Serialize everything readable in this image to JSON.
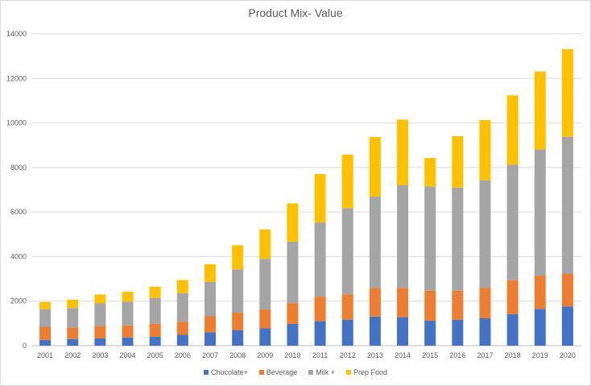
{
  "chart_data": {
    "type": "bar",
    "stacked": true,
    "title": "Product Mix- Value",
    "xlabel": "",
    "ylabel": "",
    "ylim": [
      0,
      14000
    ],
    "yticks": [
      0,
      2000,
      4000,
      6000,
      8000,
      10000,
      12000,
      14000
    ],
    "grid": true,
    "legend_position": "bottom",
    "categories": [
      "2001",
      "2002",
      "2003",
      "2004",
      "2005",
      "2006",
      "2007",
      "2008",
      "2009",
      "2010",
      "2011",
      "2012",
      "2013",
      "2014",
      "2015",
      "2016",
      "2017",
      "2018",
      "2019",
      "2020"
    ],
    "series": [
      {
        "name": "Chocolate+",
        "color": "#4472C4",
        "values": [
          260,
          300,
          330,
          370,
          400,
          490,
          600,
          700,
          780,
          980,
          1100,
          1170,
          1310,
          1280,
          1120,
          1160,
          1230,
          1420,
          1650,
          1760
        ]
      },
      {
        "name": "Beverage",
        "color": "#ED7D31",
        "values": [
          590,
          510,
          560,
          540,
          580,
          590,
          720,
          780,
          850,
          930,
          1100,
          1130,
          1280,
          1320,
          1350,
          1310,
          1370,
          1520,
          1500,
          1460
        ]
      },
      {
        "name": "Milk +",
        "color": "#A5A5A5",
        "values": [
          790,
          880,
          1010,
          1070,
          1170,
          1270,
          1540,
          1950,
          2270,
          2760,
          3330,
          3870,
          4100,
          4600,
          4680,
          4630,
          4830,
          5180,
          5660,
          6160
        ]
      },
      {
        "name": "Prep Food",
        "color": "#FFC000",
        "values": [
          320,
          380,
          400,
          440,
          500,
          600,
          800,
          1080,
          1320,
          1720,
          2180,
          2410,
          2680,
          2950,
          1280,
          2310,
          2700,
          3120,
          3500,
          3930
        ]
      }
    ]
  }
}
